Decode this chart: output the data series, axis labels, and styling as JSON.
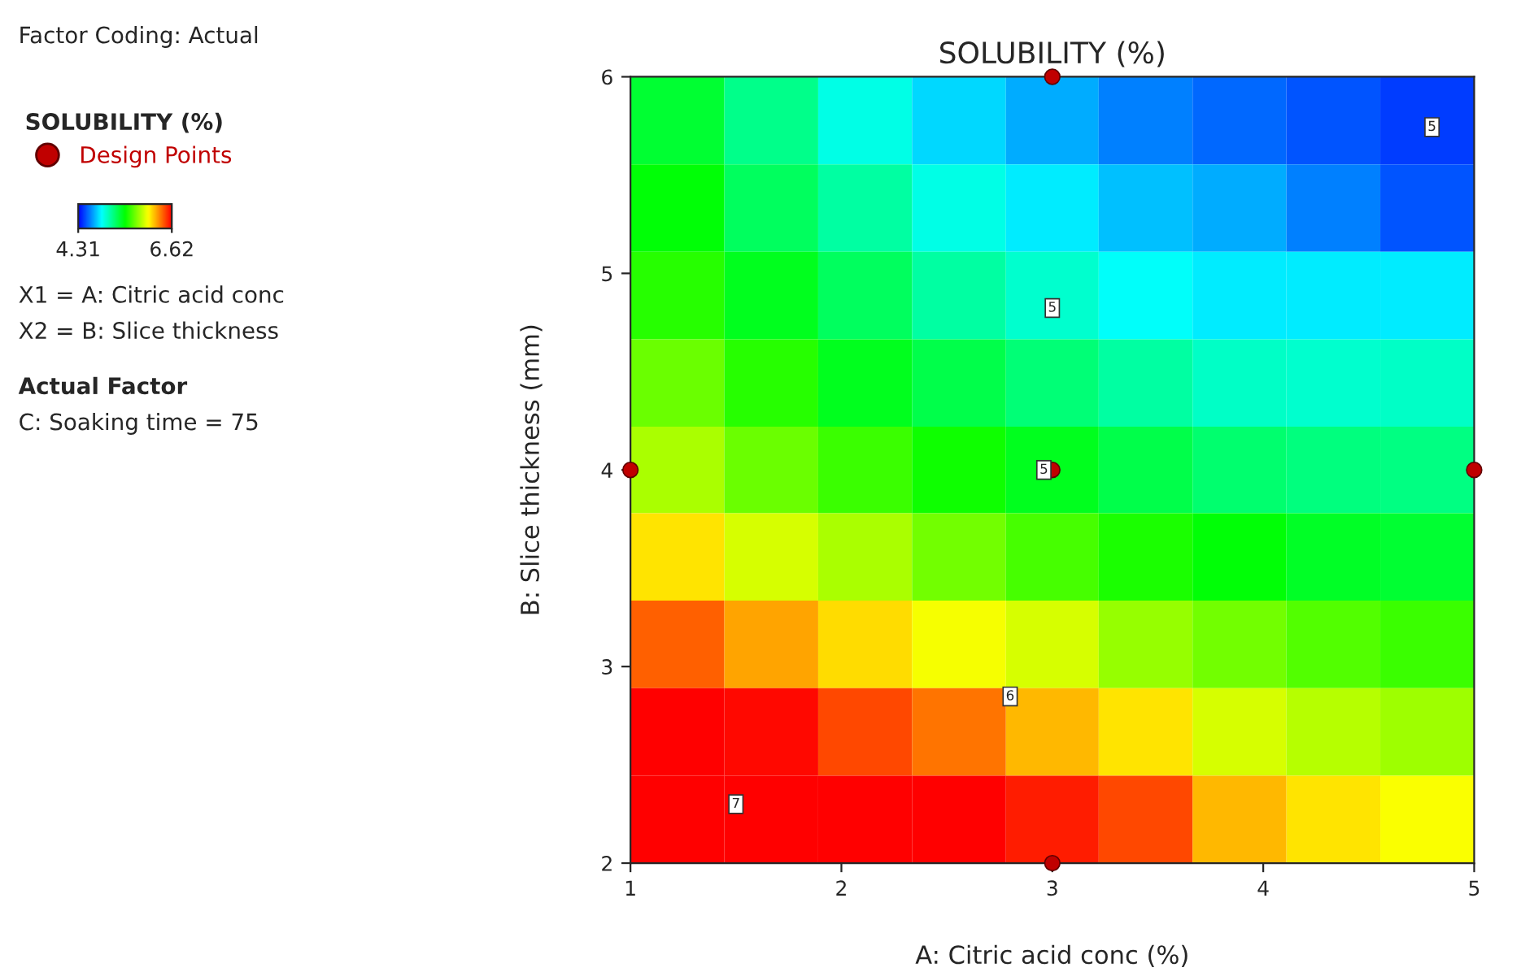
{
  "chart_data": {
    "type": "heatmap",
    "title": "SOLUBILITY (%)",
    "xlabel": "A: Citric acid conc (%)",
    "ylabel": "B: Slice thickness (mm)",
    "legend_title": "SOLUBILITY (%)",
    "x": [
      1.22,
      1.67,
      2.11,
      2.56,
      3,
      3.44,
      3.89,
      4.33,
      4.78
    ],
    "y": [
      5.78,
      5.33,
      4.89,
      4.44,
      4,
      3.56,
      3.11,
      2.67,
      2.22
    ],
    "cells": [
      [
        5.35,
        5.15,
        4.95,
        4.8,
        4.7,
        4.6,
        4.55,
        4.5,
        4.45
      ],
      [
        5.45,
        5.25,
        5.1,
        4.95,
        4.85,
        4.75,
        4.7,
        4.6,
        4.5
      ],
      [
        5.55,
        5.4,
        5.25,
        5.1,
        5.0,
        4.9,
        4.85,
        4.85,
        4.85
      ],
      [
        5.7,
        5.55,
        5.4,
        5.3,
        5.2,
        5.1,
        5.02,
        5.0,
        5.02
      ],
      [
        5.85,
        5.7,
        5.6,
        5.5,
        5.4,
        5.3,
        5.22,
        5.18,
        5.17
      ],
      [
        6.1,
        5.95,
        5.85,
        5.72,
        5.62,
        5.52,
        5.45,
        5.38,
        5.35
      ],
      [
        6.4,
        6.25,
        6.12,
        6.02,
        5.95,
        5.8,
        5.72,
        5.65,
        5.6
      ],
      [
        6.62,
        6.6,
        6.45,
        6.35,
        6.2,
        6.1,
        5.95,
        5.88,
        5.82
      ],
      [
        6.62,
        6.62,
        6.62,
        6.62,
        6.55,
        6.45,
        6.2,
        6.1,
        6.03
      ]
    ],
    "clim": [
      4.31,
      6.62
    ],
    "cticks": [
      4.31,
      6.62
    ],
    "xlim": [
      1,
      5
    ],
    "ylim": [
      2,
      6
    ],
    "xticks": [
      1,
      2,
      3,
      4,
      5
    ],
    "yticks": [
      2,
      3,
      4,
      5,
      6
    ],
    "grid": false,
    "legend": "top left",
    "series": [
      {
        "name": "Design Points",
        "type": "scatter",
        "color": "#c00000",
        "x": [
          3,
          1,
          3,
          5,
          3
        ],
        "values": [
          6,
          4,
          4,
          4,
          2
        ]
      }
    ],
    "annotations": [
      "Factor Coding: Actual",
      "X1 = A: Citric acid conc",
      "X2 = B: Slice thickness",
      "Actual Factor",
      "C: Soaking time = 75",
      "5",
      "5",
      "6",
      "7",
      "5"
    ]
  }
}
